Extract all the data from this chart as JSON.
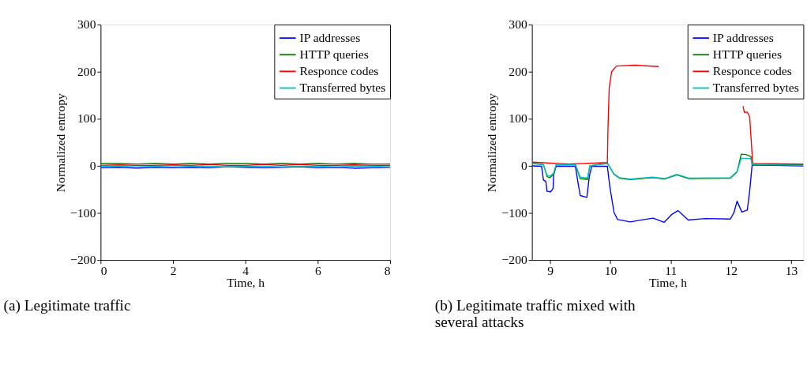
{
  "chart_data": [
    {
      "type": "line",
      "title": "(a) Legitimate traffic",
      "xlabel": "Time, h",
      "ylabel": "Normalized entropy",
      "xlim": [
        0,
        8
      ],
      "xticks": [
        0,
        2,
        4,
        6,
        8
      ],
      "ylim": [
        -200,
        300
      ],
      "yticks": [
        -200,
        -100,
        0,
        100,
        200,
        300
      ],
      "grid": false,
      "legend": "top right",
      "x": [
        0,
        0.5,
        1,
        1.5,
        2,
        2.5,
        3,
        3.5,
        4,
        4.5,
        5,
        5.5,
        6,
        6.5,
        7,
        7.5,
        8
      ],
      "series": [
        {
          "name": "IP addresses",
          "color": "#0000ff",
          "values": [
            -4,
            -3,
            -5,
            -3,
            -4,
            -3,
            -4,
            -2,
            -3,
            -4,
            -3,
            -2,
            -4,
            -3,
            -5,
            -4,
            -3
          ]
        },
        {
          "name": "HTTP queries",
          "color": "#008000",
          "values": [
            5,
            5,
            4,
            5,
            4,
            5,
            4,
            5,
            5,
            4,
            5,
            4,
            5,
            4,
            5,
            4,
            4
          ]
        },
        {
          "name": "Responce codes",
          "color": "#ff0000",
          "values": [
            1,
            2,
            1,
            1,
            2,
            1,
            3,
            1,
            1,
            3,
            1,
            3,
            1,
            1,
            2,
            1,
            1
          ]
        },
        {
          "name": "Transferred bytes",
          "color": "#00bfbf",
          "values": [
            -1,
            -1,
            -2,
            -1,
            -2,
            -1,
            -1,
            -2,
            -1,
            -1,
            -2,
            -1,
            -1,
            -2,
            -1,
            -1,
            -2
          ]
        }
      ]
    },
    {
      "type": "line",
      "title": "(b) Legitimate traffic mixed with several attacks",
      "xlabel": "Time, h",
      "ylabel": "Normalized entropy",
      "xlim": [
        8.7,
        13.2
      ],
      "xticks": [
        9,
        10,
        11,
        12,
        13
      ],
      "ylim": [
        -200,
        300
      ],
      "yticks": [
        -200,
        -100,
        0,
        100,
        200,
        300
      ],
      "grid": false,
      "legend": "top right",
      "series": [
        {
          "name": "IP addresses",
          "color": "#0000ff",
          "x": [
            8.71,
            8.86,
            8.89,
            8.93,
            8.95,
            9.01,
            9.05,
            9.06,
            9.1,
            9.42,
            9.46,
            9.5,
            9.61,
            9.65,
            9.69,
            9.95,
            9.99,
            10.06,
            10.12,
            10.33,
            10.56,
            10.71,
            10.89,
            11.01,
            11.12,
            11.2,
            11.29,
            11.57,
            11.99,
            12.05,
            12.1,
            12.18,
            12.27,
            12.31,
            12.35,
            13.2
          ],
          "values": [
            0,
            -1,
            -30,
            -33,
            -54,
            -55,
            -48,
            -18,
            -1,
            -1,
            -33,
            -63,
            -67,
            -23,
            -1,
            -1,
            -43,
            -99,
            -114,
            -119,
            -114,
            -111,
            -120,
            -104,
            -95,
            -104,
            -115,
            -112,
            -113,
            -99,
            -75,
            -98,
            -94,
            -53,
            2,
            0
          ]
        },
        {
          "name": "HTTP queries",
          "color": "#008000",
          "x": [
            8.71,
            8.89,
            8.95,
            9.0,
            9.06,
            9.1,
            9.42,
            9.5,
            9.62,
            9.66,
            9.95,
            10.06,
            10.15,
            10.33,
            10.7,
            10.9,
            11.1,
            11.3,
            11.99,
            12.1,
            12.17,
            12.25,
            12.33,
            12.35,
            13.2
          ],
          "values": [
            6,
            3,
            -23,
            -25,
            -18,
            2,
            3,
            -27,
            -29,
            0,
            6,
            -18,
            -26,
            -29,
            -25,
            -28,
            -19,
            -27,
            -26,
            -13,
            25,
            24,
            20,
            3,
            2
          ]
        },
        {
          "name": "Responce codes",
          "color": "#ff0000",
          "x": [
            8.71,
            9.3,
            9.95,
            9.96,
            9.98,
            10.02,
            10.1,
            10.4,
            10.8,
            10.85,
            12.19,
            12.2,
            12.22,
            12.27,
            12.31,
            12.33,
            12.36,
            13.2
          ],
          "values": [
            8,
            4,
            7,
            78,
            165,
            200,
            212,
            214,
            211,
            null,
            null,
            127,
            114,
            114,
            104,
            63,
            5,
            4
          ]
        },
        {
          "name": "Transferred bytes",
          "color": "#00bfbf",
          "x": [
            8.71,
            8.89,
            8.95,
            9.0,
            9.06,
            9.1,
            9.42,
            9.5,
            9.62,
            9.66,
            9.95,
            10.06,
            10.15,
            10.33,
            10.7,
            10.9,
            11.1,
            11.3,
            11.99,
            12.1,
            12.17,
            12.25,
            12.33,
            12.35,
            13.2
          ],
          "values": [
            5,
            2,
            -20,
            -22,
            -15,
            2,
            2,
            -24,
            -26,
            0,
            5,
            -17,
            -25,
            -28,
            -24,
            -27,
            -18,
            -26,
            -25,
            -12,
            16,
            16,
            15,
            3,
            1
          ]
        }
      ]
    }
  ]
}
